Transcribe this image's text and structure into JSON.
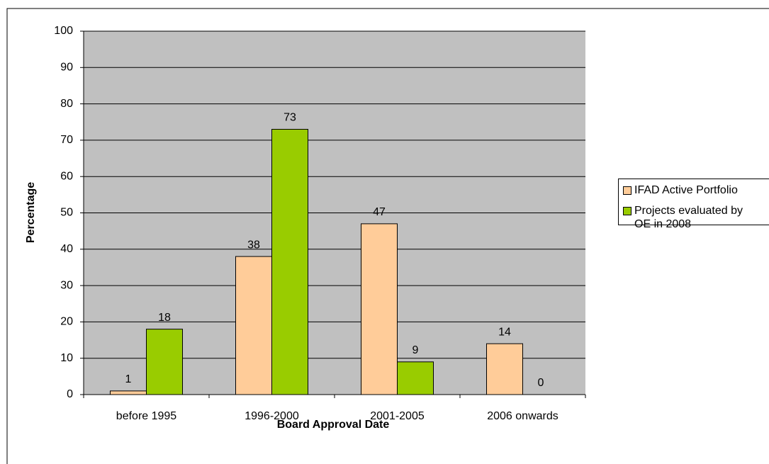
{
  "chart_data": {
    "type": "bar",
    "x_label": "Board Approval Date",
    "y_label": "Percentage",
    "categories": [
      "before 1995",
      "1996-2000",
      "2001-2005",
      "2006 onwards"
    ],
    "series": [
      {
        "name": "IFAD Active Portfolio",
        "color": "#ffcc99",
        "values": [
          1,
          38,
          47,
          14
        ]
      },
      {
        "name": "Projects evaluated by OE in 2008",
        "color": "#99cc00",
        "values": [
          18,
          73,
          9,
          0
        ]
      }
    ],
    "ylim": [
      0,
      100
    ],
    "yticks": [
      0,
      10,
      20,
      30,
      40,
      50,
      60,
      70,
      80,
      90,
      100
    ],
    "grid": true,
    "legend": "right"
  }
}
